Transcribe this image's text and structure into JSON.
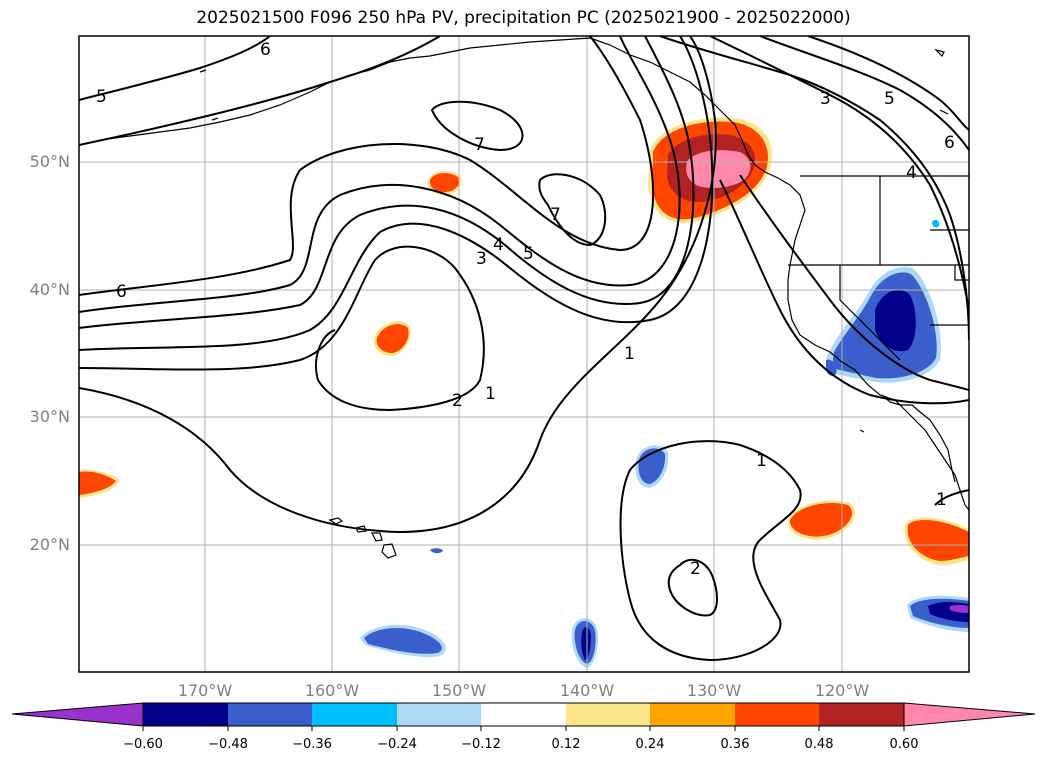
{
  "title": "2025021500 F096 250 hPa PV, precipitation PC (2025021900 - 2025022000)",
  "lat_labels": [
    "50°N",
    "40°N",
    "30°N",
    "20°N"
  ],
  "lon_labels": [
    "170°W",
    "160°W",
    "150°W",
    "140°W",
    "130°W",
    "120°W"
  ],
  "contour_labels": [
    "5",
    "6",
    "7",
    "7",
    "6",
    "3",
    "4",
    "5",
    "3",
    "5",
    "6",
    "4",
    "1",
    "2",
    "1",
    "1",
    "2",
    "1"
  ],
  "colorbar": {
    "tick_labels": [
      "−0.60",
      "−0.48",
      "−0.36",
      "−0.24",
      "−0.12",
      "0.12",
      "0.24",
      "0.36",
      "0.48",
      "0.60"
    ],
    "colors": [
      "#9932cc",
      "#00008b",
      "#3a5fcd",
      "#00bfff",
      "#add8f6",
      "#ffffff",
      "#fde68a",
      "#ffa500",
      "#ff4500",
      "#b22222",
      "#ff88aa"
    ]
  }
}
